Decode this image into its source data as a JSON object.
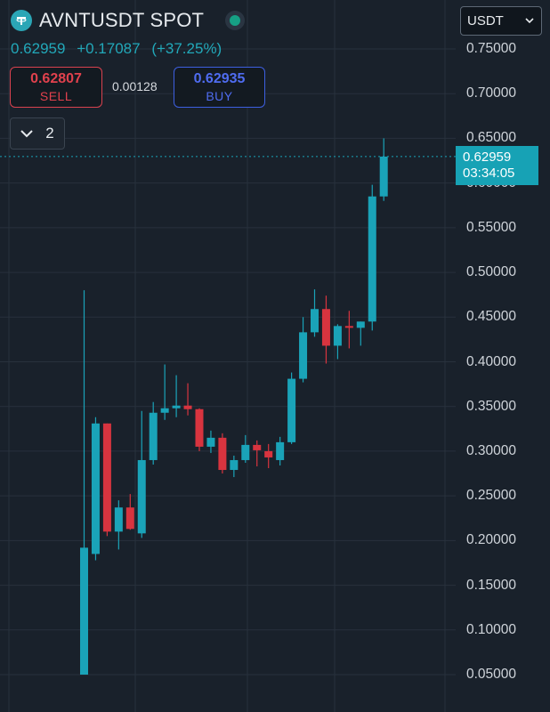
{
  "header": {
    "symbol": "AVNTUSDT SPOT",
    "currency": "USDT",
    "last_price": "0.62959",
    "change": "+0.17087",
    "change_pct": "(+37.25%)"
  },
  "order": {
    "sell_price": "0.62807",
    "sell_label": "SELL",
    "spread": "0.00128",
    "buy_price": "0.62935",
    "buy_label": "BUY"
  },
  "depth": {
    "value": "2"
  },
  "price_tag": {
    "price": "0.62959",
    "countdown": "03:34:05"
  },
  "colors": {
    "background": "#19212b",
    "up": "#1aa3b8",
    "down": "#d8343f",
    "grid": "#28313c",
    "last_price_line": "#1aa3b8"
  },
  "chart_data": {
    "type": "candlestick",
    "ylim": [
      0.05,
      0.75
    ],
    "y_ticks": [
      "0.75000",
      "0.70000",
      "0.65000",
      "0.60000",
      "0.55000",
      "0.50000",
      "0.45000",
      "0.40000",
      "0.35000",
      "0.30000",
      "0.25000",
      "0.20000",
      "0.15000",
      "0.10000",
      "0.05000"
    ],
    "last_price": 0.62959,
    "candles": [
      {
        "open": 0.05,
        "high": 0.48,
        "low": 0.05,
        "close": 0.192
      },
      {
        "open": 0.185,
        "high": 0.338,
        "low": 0.178,
        "close": 0.331
      },
      {
        "open": 0.331,
        "high": 0.331,
        "low": 0.205,
        "close": 0.21
      },
      {
        "open": 0.21,
        "high": 0.245,
        "low": 0.19,
        "close": 0.237
      },
      {
        "open": 0.237,
        "high": 0.252,
        "low": 0.212,
        "close": 0.213
      },
      {
        "open": 0.208,
        "high": 0.345,
        "low": 0.203,
        "close": 0.29
      },
      {
        "open": 0.29,
        "high": 0.355,
        "low": 0.285,
        "close": 0.343
      },
      {
        "open": 0.343,
        "high": 0.397,
        "low": 0.335,
        "close": 0.348
      },
      {
        "open": 0.348,
        "high": 0.385,
        "low": 0.338,
        "close": 0.351
      },
      {
        "open": 0.351,
        "high": 0.376,
        "low": 0.34,
        "close": 0.347
      },
      {
        "open": 0.347,
        "high": 0.348,
        "low": 0.3,
        "close": 0.305
      },
      {
        "open": 0.305,
        "high": 0.323,
        "low": 0.298,
        "close": 0.315
      },
      {
        "open": 0.315,
        "high": 0.32,
        "low": 0.275,
        "close": 0.279
      },
      {
        "open": 0.279,
        "high": 0.295,
        "low": 0.271,
        "close": 0.29
      },
      {
        "open": 0.29,
        "high": 0.318,
        "low": 0.287,
        "close": 0.307
      },
      {
        "open": 0.307,
        "high": 0.312,
        "low": 0.283,
        "close": 0.301
      },
      {
        "open": 0.3,
        "high": 0.308,
        "low": 0.281,
        "close": 0.293
      },
      {
        "open": 0.29,
        "high": 0.316,
        "low": 0.284,
        "close": 0.31
      },
      {
        "open": 0.31,
        "high": 0.388,
        "low": 0.308,
        "close": 0.381
      },
      {
        "open": 0.381,
        "high": 0.45,
        "low": 0.377,
        "close": 0.433
      },
      {
        "open": 0.433,
        "high": 0.481,
        "low": 0.428,
        "close": 0.459
      },
      {
        "open": 0.459,
        "high": 0.474,
        "low": 0.398,
        "close": 0.418
      },
      {
        "open": 0.418,
        "high": 0.442,
        "low": 0.403,
        "close": 0.44
      },
      {
        "open": 0.44,
        "high": 0.457,
        "low": 0.415,
        "close": 0.438
      },
      {
        "open": 0.438,
        "high": 0.445,
        "low": 0.418,
        "close": 0.445
      },
      {
        "open": 0.445,
        "high": 0.598,
        "low": 0.435,
        "close": 0.585
      },
      {
        "open": 0.585,
        "high": 0.65,
        "low": 0.58,
        "close": 0.62959
      }
    ]
  }
}
